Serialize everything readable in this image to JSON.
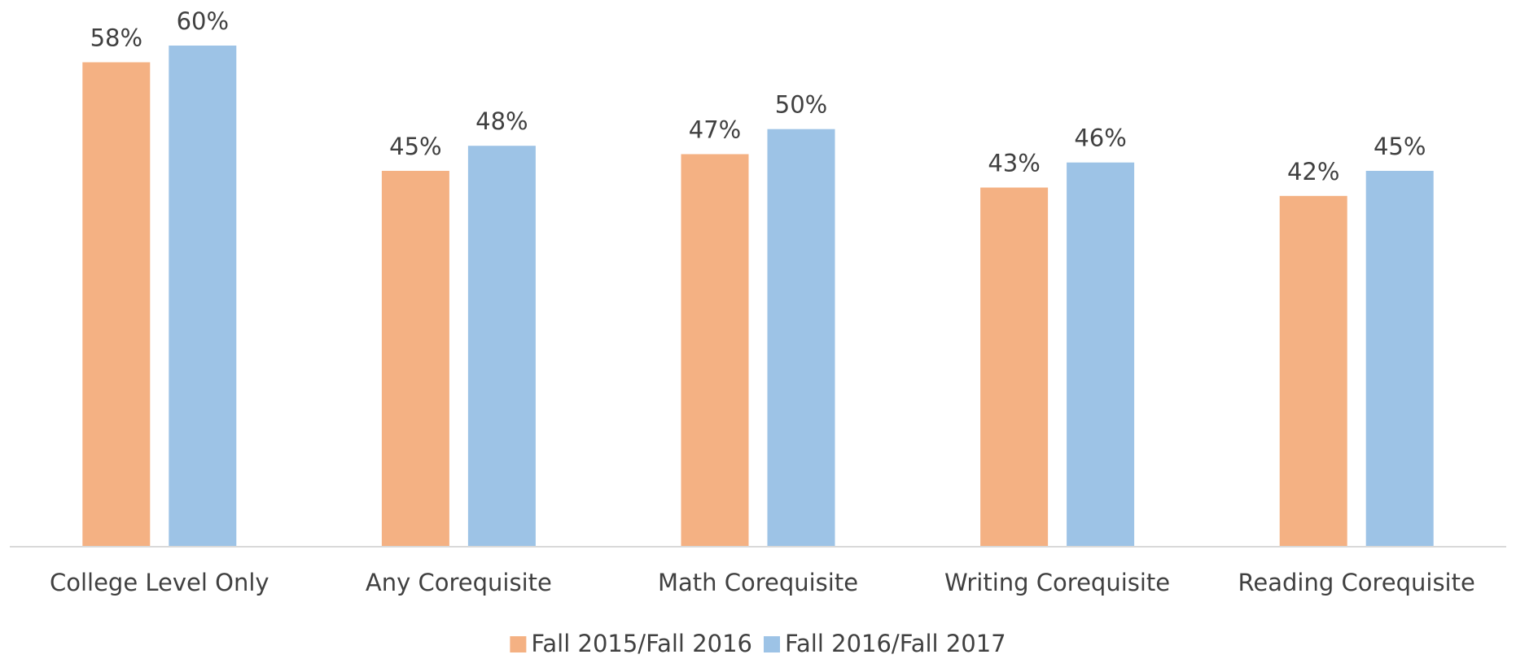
{
  "chart_data": {
    "type": "bar",
    "categories": [
      "College Level Only",
      "Any Corequisite",
      "Math Corequisite",
      "Writing Corequisite",
      "Reading Corequisite"
    ],
    "series": [
      {
        "name": "Fall 2015/Fall 2016",
        "color": "#f4b183",
        "values": [
          58,
          45,
          47,
          43,
          42
        ],
        "value_labels": [
          "58%",
          "45%",
          "47%",
          "43%",
          "42%"
        ]
      },
      {
        "name": "Fall 2016/Fall 2017",
        "color": "#9dc3e6",
        "values": [
          60,
          48,
          50,
          46,
          45
        ],
        "value_labels": [
          "60%",
          "48%",
          "50%",
          "46%",
          "45%"
        ]
      }
    ],
    "ylim": [
      0,
      60
    ],
    "legend": "bottom"
  }
}
